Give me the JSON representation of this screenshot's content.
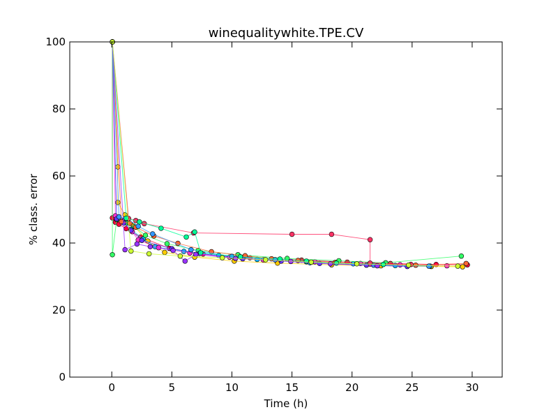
{
  "chart_data": {
    "type": "line",
    "title": "winequalitywhite.TPE.CV",
    "xlabel": "Time (h)",
    "ylabel": "% class. error",
    "xlim": [
      -3.5,
      32.5
    ],
    "ylim": [
      0,
      100
    ],
    "xticks": [
      0,
      5,
      10,
      15,
      20,
      25,
      30
    ],
    "yticks": [
      0,
      20,
      40,
      60,
      80,
      100
    ],
    "grid": false,
    "legend": "none",
    "series": [
      {
        "color": "#ff0040",
        "x": [
          0.05,
          0.05,
          0.3,
          0.6,
          1.2,
          2.4,
          4.8,
          7.6,
          11.5,
          15.8,
          19.6,
          23.2,
          27.0,
          29.6
        ],
        "y": [
          100,
          47.5,
          46.2,
          45.6,
          44.3,
          41.8,
          38.4,
          36.7,
          35.6,
          34.9,
          34.3,
          33.9,
          33.6,
          33.5
        ]
      },
      {
        "color": "#ffcc00",
        "x": [
          0.05,
          0.5,
          0.5,
          1.1,
          1.8,
          3.0,
          4.4,
          6.9,
          10.2,
          13.8,
          18.3,
          22.4,
          26.6,
          29.2
        ],
        "y": [
          100,
          62.7,
          52.1,
          48.4,
          45.2,
          40.6,
          37.2,
          35.8,
          34.6,
          34.0,
          33.5,
          33.2,
          33.0,
          32.9
        ]
      },
      {
        "color": "#00ccff",
        "x": [
          0.05,
          0.4,
          1.0,
          1.6,
          2.6,
          3.6,
          6.0,
          8.9,
          12.1,
          16.2,
          20.1,
          23.6,
          26.5
        ],
        "y": [
          100,
          47.6,
          46.8,
          44.1,
          41.2,
          38.9,
          37.5,
          36.3,
          35.1,
          34.4,
          33.8,
          33.3,
          33.1
        ]
      },
      {
        "color": "#ff33cc",
        "x": [
          0.05,
          0.3,
          0.9,
          1.7,
          2.2,
          3.9,
          6.5,
          9.8,
          12.6,
          16.9,
          20.7,
          24.0,
          27.9
        ],
        "y": [
          100,
          48.1,
          46.5,
          43.4,
          40.9,
          38.6,
          37.0,
          35.8,
          35.0,
          34.4,
          33.9,
          33.5,
          33.2
        ]
      },
      {
        "color": "#33ff66",
        "x": [
          0.05,
          0.05,
          0.4,
          1.2,
          1.9,
          2.8,
          4.6,
          7.2,
          10.5,
          14.6,
          18.9,
          22.8,
          29.1
        ],
        "y": [
          100,
          36.5,
          47.0,
          46.0,
          44.9,
          42.3,
          39.8,
          37.8,
          36.5,
          35.4,
          34.7,
          34.1,
          36.1
        ]
      },
      {
        "color": "#6633ff",
        "x": [
          0.05,
          0.4,
          1.0,
          1.6,
          2.5,
          5.0,
          7.3,
          10.9,
          14.1,
          17.3,
          21.2,
          24.6
        ],
        "y": [
          100,
          47.2,
          46.0,
          43.8,
          40.8,
          38.3,
          36.9,
          35.3,
          34.6,
          33.9,
          33.4,
          33.0
        ]
      },
      {
        "color": "#ff6633",
        "x": [
          0.05,
          0.8,
          1.5,
          2.0,
          3.5,
          5.5,
          8.3,
          11.1,
          13.3,
          15.5,
          18.6,
          21.5,
          25.3,
          29.5
        ],
        "y": [
          100,
          46.4,
          45.9,
          44.7,
          42.1,
          39.9,
          37.4,
          36.2,
          35.3,
          34.8,
          34.2,
          33.7,
          33.4,
          33.9
        ]
      },
      {
        "color": "#3399ff",
        "x": [
          0.05,
          0.6,
          1.3,
          2.2,
          3.4,
          6.6,
          10.0,
          13.6,
          16.5,
          21.8,
          26.4
        ],
        "y": [
          100,
          47.8,
          47.2,
          45.0,
          42.7,
          38.0,
          36.0,
          35.0,
          34.1,
          33.4,
          33.1
        ]
      },
      {
        "color": "#ff3366",
        "x": [
          0.05,
          1.4,
          2.0,
          2.7,
          6.8,
          15.0,
          18.3,
          21.5,
          21.5,
          24.9
        ],
        "y": [
          100,
          47.3,
          46.7,
          45.8,
          43.0,
          42.6,
          42.6,
          41.0,
          34.0,
          33.6
        ]
      },
      {
        "color": "#00ff99",
        "x": [
          0.05,
          1.2,
          2.3,
          4.1,
          6.2,
          6.9,
          7.4,
          10.7,
          14.0,
          16.2,
          18.7,
          22.6
        ],
        "y": [
          100,
          47.4,
          46.3,
          44.4,
          41.8,
          43.3,
          37.1,
          35.9,
          35.2,
          34.6,
          34.0,
          33.6
        ]
      },
      {
        "color": "#9933ff",
        "x": [
          0.05,
          1.1,
          2.1,
          3.2,
          5.1,
          6.1,
          7.0,
          10.3,
          14.9,
          18.2,
          22.1
        ],
        "y": [
          100,
          38.0,
          39.7,
          38.9,
          37.8,
          34.6,
          36.6,
          35.4,
          34.5,
          33.8,
          33.2
        ]
      },
      {
        "color": "#ccff33",
        "x": [
          0.05,
          1.6,
          3.1,
          5.7,
          9.2,
          12.8,
          16.6,
          20.4,
          24.7,
          28.8
        ],
        "y": [
          100,
          37.6,
          36.8,
          36.1,
          35.6,
          35.0,
          34.3,
          33.8,
          33.4,
          33.1
        ]
      }
    ]
  }
}
